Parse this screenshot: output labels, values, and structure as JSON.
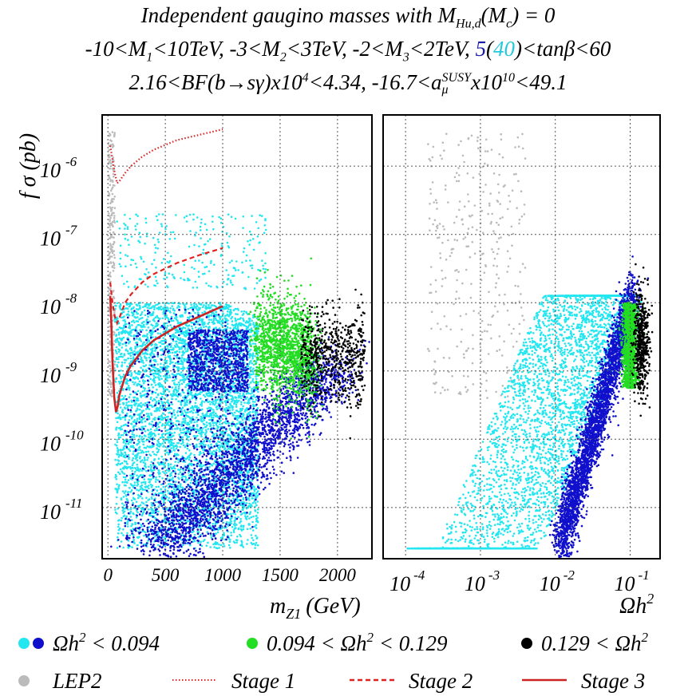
{
  "header": {
    "line1": {
      "pre": "Independent gaugino masses with M",
      "sub": "Hu,d",
      "mid": "(M",
      "sub2": "c",
      "post": ") = 0"
    },
    "line2": {
      "a": "-10<M",
      "a_sub": "1",
      "b": "<10TeV, -3<M",
      "b_sub": "2",
      "c": "<3TeV, -2<M",
      "c_sub": "3",
      "d": "<2TeV, ",
      "tan_low": "5",
      "paren_open": "(",
      "tan_high": "40",
      "paren_close": ")",
      "e": "<tanβ<60"
    },
    "line3": {
      "a": "2.16<BF(b→sγ)x10",
      "a_sup": "4",
      "b": "<4.34, -16.7<a",
      "b_sup": "SUSY",
      "b_sub": "μ",
      "c": "x10",
      "c_sup": "10",
      "d": "<49.1"
    }
  },
  "chart_data": [
    {
      "type": "scatter",
      "name": "left-panel",
      "xlabel": "m_Z1 (GeV)",
      "xlabel_main": "m",
      "xlabel_sub": "Z1",
      "xlabel_unit": "(GeV)",
      "ylabel": "f σ (pb)",
      "xlim": [
        -50,
        2300
      ],
      "ylim_log10": [
        -11.75,
        -5.25
      ],
      "xticks": [
        0,
        500,
        1000,
        1500,
        2000
      ],
      "xtick_labels": [
        "0",
        "500",
        "1000",
        "1500",
        "2000"
      ],
      "yticks_log10": [
        -11,
        -10,
        -9,
        -8,
        -7,
        -6
      ],
      "ytick_labels": [
        {
          "base": "10",
          "exp": "-11"
        },
        {
          "base": "10",
          "exp": "-10"
        },
        {
          "base": "10",
          "exp": "-9"
        },
        {
          "base": "10",
          "exp": "-8"
        },
        {
          "base": "10",
          "exp": "-7"
        },
        {
          "base": "10",
          "exp": "-6"
        }
      ],
      "grid": true,
      "curves": [
        {
          "name": "Stage 1",
          "style": "dotted",
          "x": [
            20,
            40,
            60,
            80,
            100,
            150,
            200,
            300,
            400,
            600,
            800,
            1000
          ],
          "y_log10": [
            -5.7,
            -5.9,
            -6.1,
            -6.25,
            -6.22,
            -6.1,
            -6.0,
            -5.86,
            -5.76,
            -5.62,
            -5.54,
            -5.46
          ]
        },
        {
          "name": "Stage 2",
          "style": "dashed",
          "x": [
            20,
            40,
            60,
            80,
            100,
            150,
            200,
            300,
            400,
            600,
            800,
            1000
          ],
          "y_log10": [
            -7.7,
            -8.0,
            -8.2,
            -8.3,
            -8.22,
            -8.0,
            -7.88,
            -7.7,
            -7.58,
            -7.42,
            -7.3,
            -7.2
          ]
        },
        {
          "name": "Stage 3",
          "style": "solid",
          "x": [
            20,
            30,
            40,
            55,
            70,
            85,
            100,
            150,
            200,
            300,
            400,
            600,
            800,
            1000
          ],
          "y_log10": [
            -7.9,
            -8.3,
            -8.85,
            -9.38,
            -9.6,
            -9.52,
            -9.35,
            -9.08,
            -8.92,
            -8.7,
            -8.55,
            -8.35,
            -8.2,
            -8.05
          ]
        }
      ]
    },
    {
      "type": "scatter",
      "name": "right-panel",
      "xlabel": "Ωh²",
      "xlabel_main": "Ωh",
      "xlabel_sup": "2",
      "xlim_log10": [
        -4.3,
        -0.6
      ],
      "ylim_log10": [
        -11.75,
        -5.25
      ],
      "xticks_log10": [
        -4,
        -3,
        -2,
        -1
      ],
      "xtick_labels": [
        {
          "base": "10",
          "exp": "-4"
        },
        {
          "base": "10",
          "exp": "-3"
        },
        {
          "base": "10",
          "exp": "-2"
        },
        {
          "base": "10",
          "exp": "-1"
        }
      ],
      "grid": true
    }
  ],
  "legend": {
    "row1": [
      {
        "label_main": "Ωh",
        "label_sup": "2",
        "label_rest": " < 0.094",
        "colors": [
          "#22e6f0",
          "#1010cc"
        ]
      },
      {
        "label_pre": "0.094 < Ωh",
        "label_sup": "2",
        "label_rest": " < 0.129",
        "colors": [
          "#22dd22"
        ]
      },
      {
        "label_pre": "0.129 < Ωh",
        "label_sup": "2",
        "label_rest": "",
        "colors": [
          "#000000"
        ]
      }
    ],
    "row2": [
      {
        "label": "LEP2",
        "color": "#bbbbbb"
      },
      {
        "label": "Stage 1",
        "style": "dotted",
        "color": "#dd2222"
      },
      {
        "label": "Stage 2",
        "style": "dashed",
        "color": "#dd2222"
      },
      {
        "label": "Stage 3",
        "style": "solid",
        "color": "#cc2222"
      }
    ]
  },
  "colors": {
    "cyan": "#22e6f0",
    "blue": "#1010cc",
    "green": "#22dd22",
    "black": "#000000",
    "lep2": "#bbbbbb",
    "curve": "#dd2222",
    "tan_low": "#1a1aa8",
    "tan_high": "#22c8dc"
  }
}
